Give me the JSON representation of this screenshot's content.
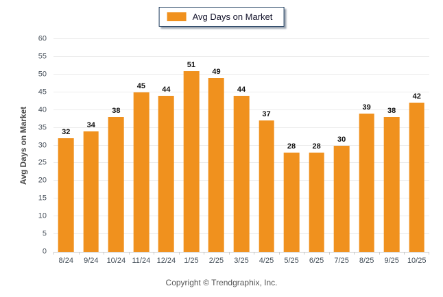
{
  "legend": {
    "label": "Avg Days on Market",
    "swatch_color": "#F0911E"
  },
  "footer": {
    "copyright": "Copyright © Trendgraphix, Inc."
  },
  "chart_data": {
    "type": "bar",
    "title": "",
    "categories": [
      "8/24",
      "9/24",
      "10/24",
      "11/24",
      "12/24",
      "1/25",
      "2/25",
      "3/25",
      "4/25",
      "5/25",
      "6/25",
      "7/25",
      "8/25",
      "9/25",
      "10/25"
    ],
    "values": [
      32,
      34,
      38,
      45,
      44,
      51,
      49,
      44,
      37,
      28,
      28,
      30,
      39,
      38,
      42
    ],
    "xlabel": "",
    "ylabel": "Avg Days on Market",
    "ylim": [
      0,
      60
    ],
    "ytick_step": 5,
    "grid": "horizontal",
    "legend_position": "top-center",
    "bar_color": "#F0911E",
    "value_labels": true
  }
}
